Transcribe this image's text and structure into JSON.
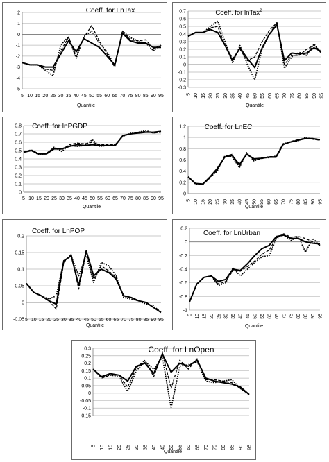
{
  "chart_data": [
    {
      "type": "line",
      "title": "Coeff. for LnTax",
      "xlabel": "Quantile",
      "ylabel": "",
      "ylim": [
        -5,
        2
      ],
      "yticks": [
        2,
        1,
        0,
        -1,
        -2,
        -3,
        -4,
        -5
      ],
      "x": [
        5,
        10,
        15,
        20,
        25,
        30,
        35,
        40,
        45,
        50,
        55,
        60,
        65,
        70,
        75,
        80,
        85,
        90,
        95
      ],
      "grid": true,
      "legend": "none",
      "series": [
        {
          "style": "solid",
          "values": [
            -2.6,
            -2.8,
            -2.8,
            -3.0,
            -3.0,
            -1.8,
            -0.6,
            -1.6,
            -0.4,
            -0.8,
            -1.2,
            -2.0,
            -2.8,
            0.1,
            -0.6,
            -0.8,
            -0.8,
            -1.2,
            -1.2
          ]
        },
        {
          "style": "dash",
          "values": [
            -2.6,
            -2.8,
            -2.8,
            -3.2,
            -3.3,
            -1.5,
            -0.3,
            -2.0,
            -0.3,
            0.8,
            -0.6,
            -1.8,
            -3.0,
            0.3,
            -0.5,
            -0.6,
            -0.5,
            -1.3,
            -1.0
          ]
        },
        {
          "style": "dot",
          "values": [
            -2.6,
            -2.8,
            -2.8,
            -3.3,
            -3.8,
            -1.0,
            -0.2,
            -2.2,
            -0.2,
            0.3,
            -0.8,
            -1.6,
            -2.9,
            0.3,
            -0.3,
            -0.6,
            -0.8,
            -1.5,
            -1.0
          ]
        }
      ]
    },
    {
      "type": "line",
      "title": "Coeff. for lnTax",
      "title_sup": "2",
      "xlabel": "Quantile",
      "ylabel": "",
      "ylim": [
        -0.3,
        0.7
      ],
      "yticks": [
        0.7,
        0.6,
        0.5,
        0.4,
        0.3,
        0.2,
        0.1,
        0,
        -0.1,
        -0.2,
        -0.3
      ],
      "x": [
        5,
        10,
        15,
        20,
        25,
        30,
        35,
        40,
        45,
        50,
        55,
        60,
        65,
        70,
        75,
        80,
        85,
        90,
        95
      ],
      "grid": true,
      "legend": "none",
      "series": [
        {
          "style": "solid",
          "values": [
            0.37,
            0.42,
            0.42,
            0.46,
            0.42,
            0.25,
            0.05,
            0.22,
            0.08,
            -0.04,
            0.22,
            0.4,
            0.52,
            0.05,
            0.15,
            0.14,
            0.15,
            0.22,
            0.17
          ]
        },
        {
          "style": "dash",
          "values": [
            0.37,
            0.42,
            0.42,
            0.48,
            0.5,
            0.25,
            0.08,
            0.2,
            0.05,
            0.1,
            0.3,
            0.45,
            0.55,
            0.0,
            0.12,
            0.12,
            0.2,
            0.25,
            0.15
          ]
        },
        {
          "style": "dot",
          "values": [
            0.37,
            0.42,
            0.42,
            0.5,
            0.57,
            0.3,
            0.02,
            0.25,
            0.0,
            -0.2,
            0.2,
            0.4,
            0.55,
            -0.05,
            0.1,
            0.16,
            0.12,
            0.27,
            0.15
          ]
        }
      ]
    },
    {
      "type": "line",
      "title": "Coeff. for lnPGDP",
      "xlabel": "Quantile",
      "ylabel": "",
      "ylim": [
        0,
        0.8
      ],
      "yticks": [
        0.8,
        0.7,
        0.6,
        0.5,
        0.4,
        0.3,
        0.2,
        0.1,
        0
      ],
      "x": [
        5,
        10,
        15,
        20,
        25,
        30,
        35,
        40,
        45,
        50,
        55,
        60,
        65,
        70,
        75,
        80,
        85,
        90,
        95
      ],
      "grid": true,
      "legend": "none",
      "series": [
        {
          "style": "solid",
          "values": [
            0.48,
            0.5,
            0.46,
            0.46,
            0.52,
            0.52,
            0.55,
            0.57,
            0.56,
            0.57,
            0.56,
            0.56,
            0.56,
            0.68,
            0.7,
            0.71,
            0.72,
            0.72,
            0.73
          ]
        },
        {
          "style": "dash",
          "values": [
            0.48,
            0.51,
            0.46,
            0.47,
            0.53,
            0.51,
            0.57,
            0.59,
            0.58,
            0.6,
            0.57,
            0.57,
            0.57,
            0.68,
            0.7,
            0.72,
            0.73,
            0.71,
            0.72
          ]
        },
        {
          "style": "dot",
          "values": [
            0.48,
            0.5,
            0.45,
            0.46,
            0.54,
            0.49,
            0.56,
            0.55,
            0.56,
            0.63,
            0.55,
            0.56,
            0.57,
            0.67,
            0.71,
            0.72,
            0.74,
            0.71,
            0.73
          ]
        }
      ]
    },
    {
      "type": "line",
      "title": "Coeff. for LnEC",
      "xlabel": "Quantile",
      "ylabel": "",
      "ylim": [
        0,
        1.2
      ],
      "yticks": [
        1.2,
        1,
        0.8,
        0.6,
        0.4,
        0.2,
        0
      ],
      "x": [
        5,
        10,
        15,
        20,
        25,
        30,
        35,
        40,
        45,
        50,
        55,
        60,
        65,
        70,
        75,
        80,
        85,
        90,
        95
      ],
      "grid": true,
      "legend": "none",
      "series": [
        {
          "style": "solid",
          "values": [
            0.3,
            0.18,
            0.17,
            0.3,
            0.45,
            0.65,
            0.68,
            0.52,
            0.7,
            0.62,
            0.63,
            0.65,
            0.65,
            0.88,
            0.92,
            0.95,
            0.98,
            0.98,
            0.96
          ]
        },
        {
          "style": "dash",
          "values": [
            0.3,
            0.18,
            0.16,
            0.28,
            0.42,
            0.66,
            0.7,
            0.48,
            0.72,
            0.6,
            0.62,
            0.66,
            0.66,
            0.87,
            0.93,
            0.96,
            0.99,
            0.97,
            0.95
          ]
        },
        {
          "style": "dot",
          "values": [
            0.3,
            0.17,
            0.16,
            0.3,
            0.4,
            0.67,
            0.66,
            0.46,
            0.73,
            0.58,
            0.64,
            0.64,
            0.67,
            0.89,
            0.92,
            0.94,
            1.0,
            0.97,
            0.96
          ]
        }
      ]
    },
    {
      "type": "line",
      "title": "Coeff. for LnPOP",
      "xlabel": "Quantile",
      "ylabel": "",
      "ylim": [
        -0.05,
        0.2
      ],
      "yticks": [
        0.2,
        0.15,
        0.1,
        0.05,
        0,
        -0.05
      ],
      "x": [
        5,
        10,
        15,
        20,
        25,
        30,
        35,
        40,
        45,
        50,
        55,
        60,
        65,
        70,
        75,
        80,
        85,
        90,
        95
      ],
      "grid": true,
      "legend": "none",
      "series": [
        {
          "style": "solid",
          "values": [
            0.057,
            0.03,
            0.02,
            0.005,
            -0.005,
            0.125,
            0.14,
            0.05,
            0.155,
            0.08,
            0.1,
            0.09,
            0.07,
            0.02,
            0.015,
            0.005,
            0.0,
            -0.015,
            -0.03
          ]
        },
        {
          "style": "dash",
          "values": [
            0.057,
            0.03,
            0.02,
            0.005,
            -0.02,
            0.12,
            0.145,
            0.04,
            0.15,
            0.07,
            0.11,
            0.095,
            0.075,
            0.02,
            0.015,
            0.005,
            0.0,
            -0.015,
            -0.03
          ]
        },
        {
          "style": "dot",
          "values": [
            0.057,
            0.03,
            0.02,
            0.01,
            0.02,
            0.125,
            0.14,
            0.08,
            0.14,
            0.06,
            0.12,
            0.11,
            0.08,
            0.015,
            0.01,
            0.005,
            -0.005,
            -0.01,
            -0.03
          ]
        }
      ]
    },
    {
      "type": "line",
      "title": "Coeff. for LnUrban",
      "xlabel": "Quantile",
      "ylabel": "",
      "ylim": [
        -1,
        0.2
      ],
      "yticks": [
        0.2,
        0,
        -0.2,
        -0.4,
        -0.6,
        -0.8,
        -1
      ],
      "x": [
        5,
        10,
        15,
        20,
        25,
        30,
        35,
        40,
        45,
        50,
        55,
        60,
        65,
        70,
        75,
        80,
        85,
        90,
        95
      ],
      "grid": true,
      "legend": "none",
      "series": [
        {
          "style": "solid",
          "values": [
            -0.88,
            -0.62,
            -0.52,
            -0.5,
            -0.58,
            -0.55,
            -0.4,
            -0.42,
            -0.32,
            -0.2,
            -0.1,
            -0.05,
            0.08,
            0.1,
            0.05,
            0.05,
            0.0,
            -0.02,
            -0.03
          ]
        },
        {
          "style": "dash",
          "values": [
            -0.88,
            -0.62,
            -0.52,
            -0.5,
            -0.62,
            -0.58,
            -0.42,
            -0.43,
            -0.36,
            -0.28,
            -0.18,
            -0.12,
            0.06,
            0.12,
            0.07,
            0.08,
            0.05,
            0.0,
            -0.05
          ]
        },
        {
          "style": "dot",
          "values": [
            -0.88,
            -0.62,
            -0.52,
            -0.5,
            -0.64,
            -0.6,
            -0.38,
            -0.5,
            -0.4,
            -0.3,
            -0.22,
            -0.2,
            0.05,
            0.1,
            0.02,
            0.08,
            -0.15,
            0.05,
            -0.05
          ]
        }
      ]
    },
    {
      "type": "line",
      "title": "Coeff. for LnOpen",
      "xlabel": "Quantile",
      "ylabel": "",
      "ylim": [
        -0.15,
        0.3
      ],
      "yticks": [
        0.3,
        0.25,
        0.2,
        0.15,
        0.1,
        0.05,
        0,
        -0.05,
        -0.1,
        -0.15
      ],
      "x": [
        5,
        10,
        15,
        20,
        25,
        30,
        35,
        40,
        45,
        50,
        55,
        60,
        65,
        70,
        75,
        80,
        85,
        90,
        95
      ],
      "grid": true,
      "legend": "none",
      "series": [
        {
          "style": "solid",
          "values": [
            0.16,
            0.11,
            0.13,
            0.12,
            0.08,
            0.18,
            0.2,
            0.13,
            0.26,
            0.14,
            0.2,
            0.18,
            0.22,
            0.1,
            0.08,
            0.07,
            0.06,
            0.04,
            -0.01
          ]
        },
        {
          "style": "dash",
          "values": [
            0.16,
            0.1,
            0.12,
            0.12,
            0.04,
            0.17,
            0.22,
            0.11,
            0.27,
            0.03,
            0.22,
            0.16,
            0.23,
            0.09,
            0.09,
            0.08,
            0.07,
            0.03,
            -0.01
          ]
        },
        {
          "style": "dot",
          "values": [
            0.16,
            0.11,
            0.12,
            0.11,
            0.01,
            0.15,
            0.21,
            0.16,
            0.24,
            -0.1,
            0.18,
            0.19,
            0.21,
            0.08,
            0.07,
            0.08,
            0.09,
            0.03,
            -0.01
          ]
        }
      ]
    }
  ]
}
